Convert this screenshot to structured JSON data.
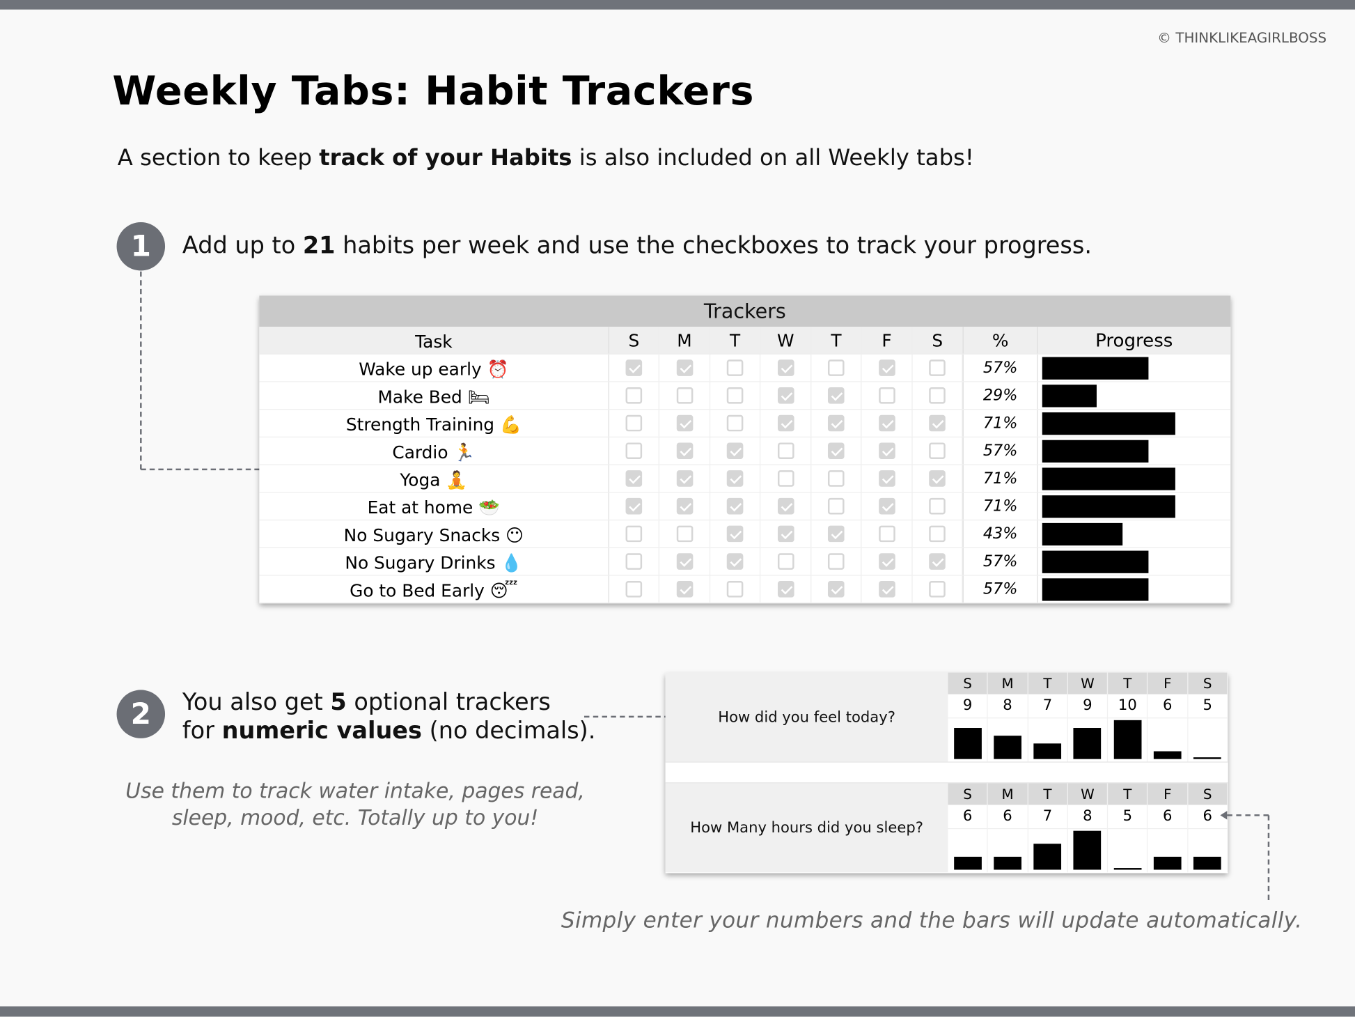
{
  "copyright": "© THINKLIKEAGIRLBOSS",
  "title": "Weekly Tabs: Habit Trackers",
  "subtitle": {
    "pre": "A section to keep ",
    "bold": "track of your Habits",
    "post": " is also included on all Weekly tabs!"
  },
  "step1": {
    "number": "1",
    "pre": "Add up to ",
    "bold": "21",
    "post": " habits per week and use the checkboxes to track your progress."
  },
  "step2": {
    "number": "2",
    "line1_pre": "You also get ",
    "line1_bold": "5",
    "line1_post": " optional trackers",
    "line2_pre": "for ",
    "line2_bold": "numeric values",
    "line2_post": " (no decimals)."
  },
  "note_left": {
    "line1": "Use them to track water intake, pages read,",
    "line2": "sleep, mood, etc. Totally up to you!"
  },
  "note_bottom": "Simply enter your numbers and the bars will update automatically.",
  "trackers": {
    "title": "Trackers",
    "headers": {
      "task": "Task",
      "days": [
        "S",
        "M",
        "T",
        "W",
        "T",
        "F",
        "S"
      ],
      "pct": "%",
      "progress": "Progress"
    },
    "rows": [
      {
        "task": "Wake up early",
        "emoji": "⏰",
        "checks": [
          1,
          1,
          0,
          1,
          0,
          1,
          0
        ],
        "pct": "57%",
        "progress": 57
      },
      {
        "task": "Make Bed",
        "emoji": "🛏",
        "checks": [
          0,
          0,
          0,
          1,
          1,
          0,
          0
        ],
        "pct": "29%",
        "progress": 29
      },
      {
        "task": "Strength Training",
        "emoji": "💪",
        "checks": [
          0,
          1,
          0,
          1,
          1,
          1,
          1
        ],
        "pct": "71%",
        "progress": 71
      },
      {
        "task": "Cardio",
        "emoji": "🏃",
        "checks": [
          0,
          1,
          1,
          0,
          1,
          1,
          0
        ],
        "pct": "57%",
        "progress": 57
      },
      {
        "task": "Yoga",
        "emoji": "🧘",
        "checks": [
          1,
          1,
          1,
          0,
          0,
          1,
          1
        ],
        "pct": "71%",
        "progress": 71
      },
      {
        "task": "Eat at home",
        "emoji": "🥗",
        "checks": [
          1,
          1,
          1,
          1,
          0,
          1,
          0
        ],
        "pct": "71%",
        "progress": 71
      },
      {
        "task": "No Sugary Snacks",
        "emoji": "😶",
        "checks": [
          0,
          0,
          1,
          1,
          1,
          0,
          0
        ],
        "pct": "43%",
        "progress": 43
      },
      {
        "task": "No Sugary Drinks",
        "emoji": "💧",
        "checks": [
          0,
          1,
          1,
          0,
          0,
          1,
          1
        ],
        "pct": "57%",
        "progress": 57
      },
      {
        "task": "Go to Bed Early",
        "emoji": "😴",
        "checks": [
          0,
          1,
          0,
          1,
          1,
          1,
          0
        ],
        "pct": "57%",
        "progress": 57
      }
    ]
  },
  "numeric_trackers": [
    {
      "label": "How did you feel today?",
      "days": [
        "S",
        "M",
        "T",
        "W",
        "T",
        "F",
        "S"
      ],
      "values": [
        9,
        8,
        7,
        9,
        10,
        6,
        5
      ]
    },
    {
      "label": "How Many hours did you sleep?",
      "days": [
        "S",
        "M",
        "T",
        "W",
        "T",
        "F",
        "S"
      ],
      "values": [
        6,
        6,
        7,
        8,
        5,
        6,
        6
      ]
    }
  ],
  "colors": {
    "accent": "#6b6e75",
    "bar": "#000000",
    "checkbox": "#d6d6d6"
  }
}
